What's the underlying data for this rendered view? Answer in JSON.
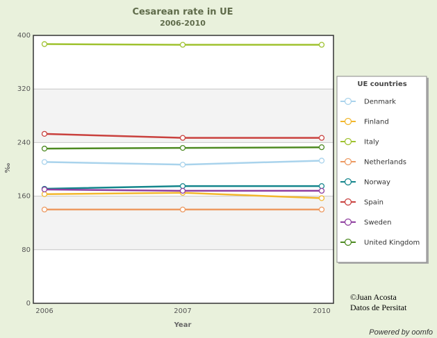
{
  "chart_data": {
    "type": "line",
    "title": "Cesarean rate in UE",
    "subtitle": "2006-2010",
    "xlabel": "Year",
    "ylabel": "‰",
    "categories": [
      "2006",
      "2007",
      "2010"
    ],
    "ylim": [
      0,
      400
    ],
    "yticks": [
      0,
      80,
      160,
      240,
      320,
      400
    ],
    "legend_title": "UE countries",
    "legend_position": "right",
    "series": [
      {
        "name": "Denmark",
        "color": "#a9d3ec",
        "values": [
          211,
          207,
          213
        ]
      },
      {
        "name": "Finland",
        "color": "#f2b72d",
        "values": [
          163,
          165,
          157
        ]
      },
      {
        "name": "Italy",
        "color": "#9fc22f",
        "values": [
          387,
          386,
          386
        ]
      },
      {
        "name": "Netherlands",
        "color": "#ed9a62",
        "values": [
          140,
          140,
          140
        ]
      },
      {
        "name": "Norway",
        "color": "#13858c",
        "values": [
          171,
          175,
          175
        ]
      },
      {
        "name": "Spain",
        "color": "#c9403d",
        "values": [
          253,
          247,
          247
        ]
      },
      {
        "name": "Sweden",
        "color": "#8e3d9f",
        "values": [
          170,
          168,
          168
        ]
      },
      {
        "name": "United Kingdom",
        "color": "#4d8a21",
        "values": [
          231,
          232,
          233
        ]
      }
    ]
  },
  "credit": {
    "line1": "©Juan Acosta",
    "line2": "Datos de Persitat"
  },
  "powered_by": "Powered by oomfo"
}
